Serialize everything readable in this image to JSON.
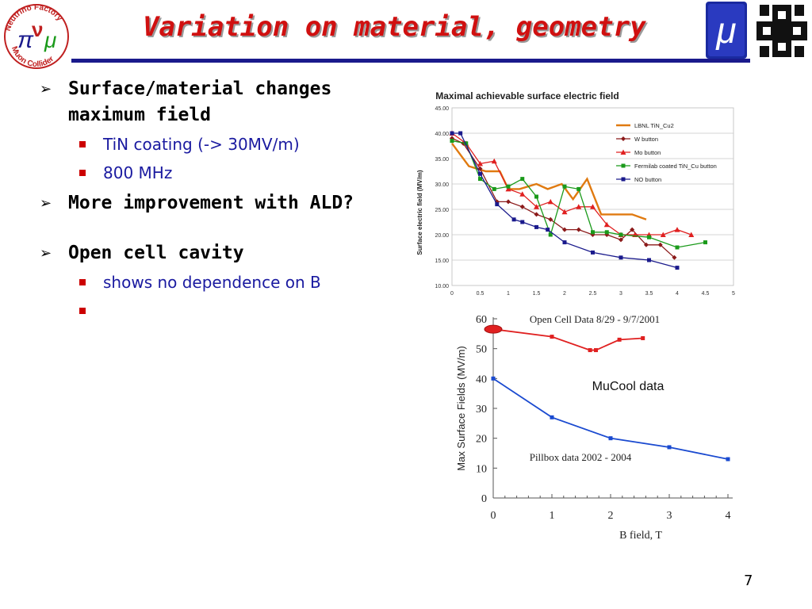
{
  "slide": {
    "title": "Variation on material, geometry",
    "number": "7"
  },
  "logos": {
    "left_ring_top": "Neutrino Factory",
    "left_ring_bottom": "Muon Collider",
    "mu_symbol": "μ"
  },
  "bullets": [
    {
      "text": "Surface/material changes maximum field",
      "sub": [
        "TiN coating (-> 30MV/m)",
        "800 MHz"
      ]
    },
    {
      "text": "More improvement with ALD?",
      "sub": []
    },
    {
      "text": "Open cell cavity",
      "sub": [
        "shows no dependence on B",
        ""
      ]
    }
  ],
  "colors": {
    "title": "#d01010",
    "rule": "#1a1a8c",
    "sub_text": "#1a1aa0",
    "sub_bullet": "#cc0000"
  },
  "chart_data": [
    {
      "type": "line",
      "title": "Maximal achievable surface electric field",
      "ylabel": "Surface electric field (MV/m)",
      "xlabel": "",
      "xlim": [
        0,
        5
      ],
      "ylim": [
        10,
        45
      ],
      "x_ticks": [
        "0",
        "0.5",
        "1",
        "1.5",
        "2",
        "2.5",
        "3",
        "3.5",
        "4",
        "4.5",
        "5"
      ],
      "y_ticks": [
        "10.00",
        "15.00",
        "20.00",
        "25.00",
        "30.00",
        "35.00",
        "40.00",
        "45.00"
      ],
      "grid": true,
      "legend_position": "top-right",
      "series": [
        {
          "name": "LBNL TiN_Cu2",
          "color": "#e07a10",
          "marker": "none",
          "x": [
            0,
            0.3,
            0.6,
            0.85,
            1.0,
            1.2,
            1.5,
            1.7,
            1.95,
            2.15,
            2.4,
            2.65,
            2.9,
            3.2,
            3.45
          ],
          "y": [
            38,
            33.5,
            32.5,
            32.5,
            29,
            29,
            30,
            29,
            30,
            27,
            31,
            24,
            24,
            24,
            23
          ]
        },
        {
          "name": "W button",
          "color": "#8b1a1a",
          "marker": "diamond",
          "x": [
            0,
            0.2,
            0.5,
            0.8,
            1.0,
            1.25,
            1.5,
            1.75,
            2.0,
            2.25,
            2.5,
            2.75,
            3.0,
            3.2,
            3.45,
            3.7,
            3.95
          ],
          "y": [
            39,
            38,
            33,
            26.5,
            26.5,
            25.5,
            24,
            23,
            21,
            21,
            20,
            20,
            19,
            21,
            18,
            18,
            15.5
          ]
        },
        {
          "name": "Mo button",
          "color": "#e02020",
          "marker": "triangle",
          "x": [
            0,
            0.25,
            0.5,
            0.75,
            1.0,
            1.25,
            1.5,
            1.75,
            2.0,
            2.25,
            2.5,
            2.75,
            3.0,
            3.25,
            3.5,
            3.75,
            4.0,
            4.25
          ],
          "y": [
            40,
            38,
            34,
            34.5,
            29,
            28,
            25.5,
            26.5,
            24.5,
            25.5,
            25.5,
            22,
            20,
            20,
            20,
            20,
            21,
            20
          ]
        },
        {
          "name": "Fermilab coated TiN_Cu button",
          "color": "#1a9a1a",
          "marker": "square",
          "x": [
            0,
            0.25,
            0.5,
            0.75,
            1.0,
            1.25,
            1.5,
            1.75,
            2.0,
            2.25,
            2.5,
            2.75,
            3.0,
            3.5,
            4.0,
            4.5
          ],
          "y": [
            38.5,
            38,
            31,
            29,
            29.5,
            31,
            27.5,
            20,
            29.5,
            29,
            20.5,
            20.5,
            20,
            19.5,
            17.5,
            18.5
          ]
        },
        {
          "name": "NO button",
          "color": "#1a1a8c",
          "marker": "square",
          "x": [
            0,
            0.15,
            0.5,
            0.8,
            1.1,
            1.25,
            1.5,
            1.7,
            2.0,
            2.5,
            3.0,
            3.5,
            4.0
          ],
          "y": [
            40,
            40,
            32,
            26,
            23,
            22.5,
            21.5,
            21,
            18.5,
            16.5,
            15.5,
            15,
            13.5
          ]
        }
      ]
    },
    {
      "type": "line",
      "title": "Open Cell Data 8/29 - 9/7/2001",
      "ylabel": "Max Surface Fields (MV/m)",
      "xlabel": "B field, T",
      "xlim": [
        0,
        4
      ],
      "ylim": [
        0,
        60
      ],
      "x_ticks": [
        "0",
        "1",
        "2",
        "3",
        "4"
      ],
      "y_ticks": [
        "0",
        "10",
        "20",
        "30",
        "40",
        "50",
        "60"
      ],
      "grid": false,
      "annotations": [
        "MuCool data",
        "Pillbox data 2002 - 2004"
      ],
      "series": [
        {
          "name": "Open Cell Data 8/29 - 9/7/2001",
          "color": "#e02020",
          "marker": "square",
          "x": [
            0,
            1.0,
            1.65,
            1.75,
            2.15,
            2.55
          ],
          "y": [
            56.5,
            54,
            49.5,
            49.5,
            53,
            53.5
          ]
        },
        {
          "name": "Pillbox data 2002 - 2004",
          "color": "#1a4ad0",
          "marker": "square",
          "x": [
            0,
            1.0,
            2.0,
            3.0,
            4.0
          ],
          "y": [
            40,
            27,
            20,
            17,
            13
          ]
        }
      ]
    }
  ]
}
